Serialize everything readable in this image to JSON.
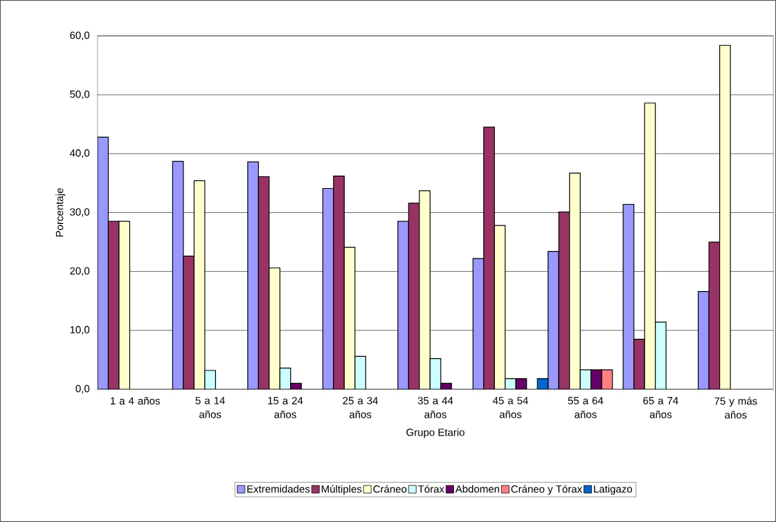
{
  "chart_data": {
    "type": "bar",
    "xlabel": "Grupo Etario",
    "ylabel": "Porcentaje",
    "categories": [
      "1 a 4 años",
      "5 a 14 años",
      "15 a 24 años",
      "25 a 34 años",
      "35 a 44 años",
      "45 a 54 años",
      "55 a 64 años",
      "65 a 74 años",
      "75 y más años"
    ],
    "series": [
      {
        "name": "Extremidades",
        "color": "#9999ff",
        "values": [
          42.8,
          38.7,
          38.6,
          34.1,
          28.5,
          22.2,
          23.4,
          31.4,
          16.6
        ]
      },
      {
        "name": "Múltiples",
        "color": "#993366",
        "values": [
          28.5,
          22.6,
          36.1,
          36.2,
          31.6,
          44.5,
          30.1,
          8.5,
          25.0
        ]
      },
      {
        "name": "Cráneo",
        "color": "#ffffcc",
        "values": [
          28.5,
          35.4,
          20.6,
          24.1,
          33.7,
          27.8,
          36.7,
          48.6,
          58.4
        ]
      },
      {
        "name": "Tórax",
        "color": "#ccffff",
        "values": [
          null,
          3.2,
          3.6,
          5.6,
          5.2,
          1.8,
          3.3,
          11.4,
          null
        ]
      },
      {
        "name": "Abdomen",
        "color": "#660066",
        "values": [
          null,
          null,
          1.0,
          null,
          1.0,
          1.8,
          3.3,
          null,
          null
        ]
      },
      {
        "name": "Cráneo y Tórax",
        "color": "#ff8080",
        "values": [
          null,
          null,
          null,
          null,
          null,
          null,
          3.3,
          null,
          null
        ]
      },
      {
        "name": "Latigazo",
        "color": "#0066cc",
        "values": [
          null,
          null,
          null,
          null,
          null,
          1.8,
          null,
          null,
          null
        ]
      }
    ],
    "ylim": [
      0,
      60
    ],
    "yticks": [
      {
        "value": 0,
        "label": "0,0"
      },
      {
        "value": 10,
        "label": "10,0"
      },
      {
        "value": 20,
        "label": "20,0"
      },
      {
        "value": 30,
        "label": "30,0"
      },
      {
        "value": 40,
        "label": "40,0"
      },
      {
        "value": 50,
        "label": "50,0"
      },
      {
        "value": 60,
        "label": "60,0"
      }
    ],
    "grid": "y",
    "legend": "bottom"
  }
}
